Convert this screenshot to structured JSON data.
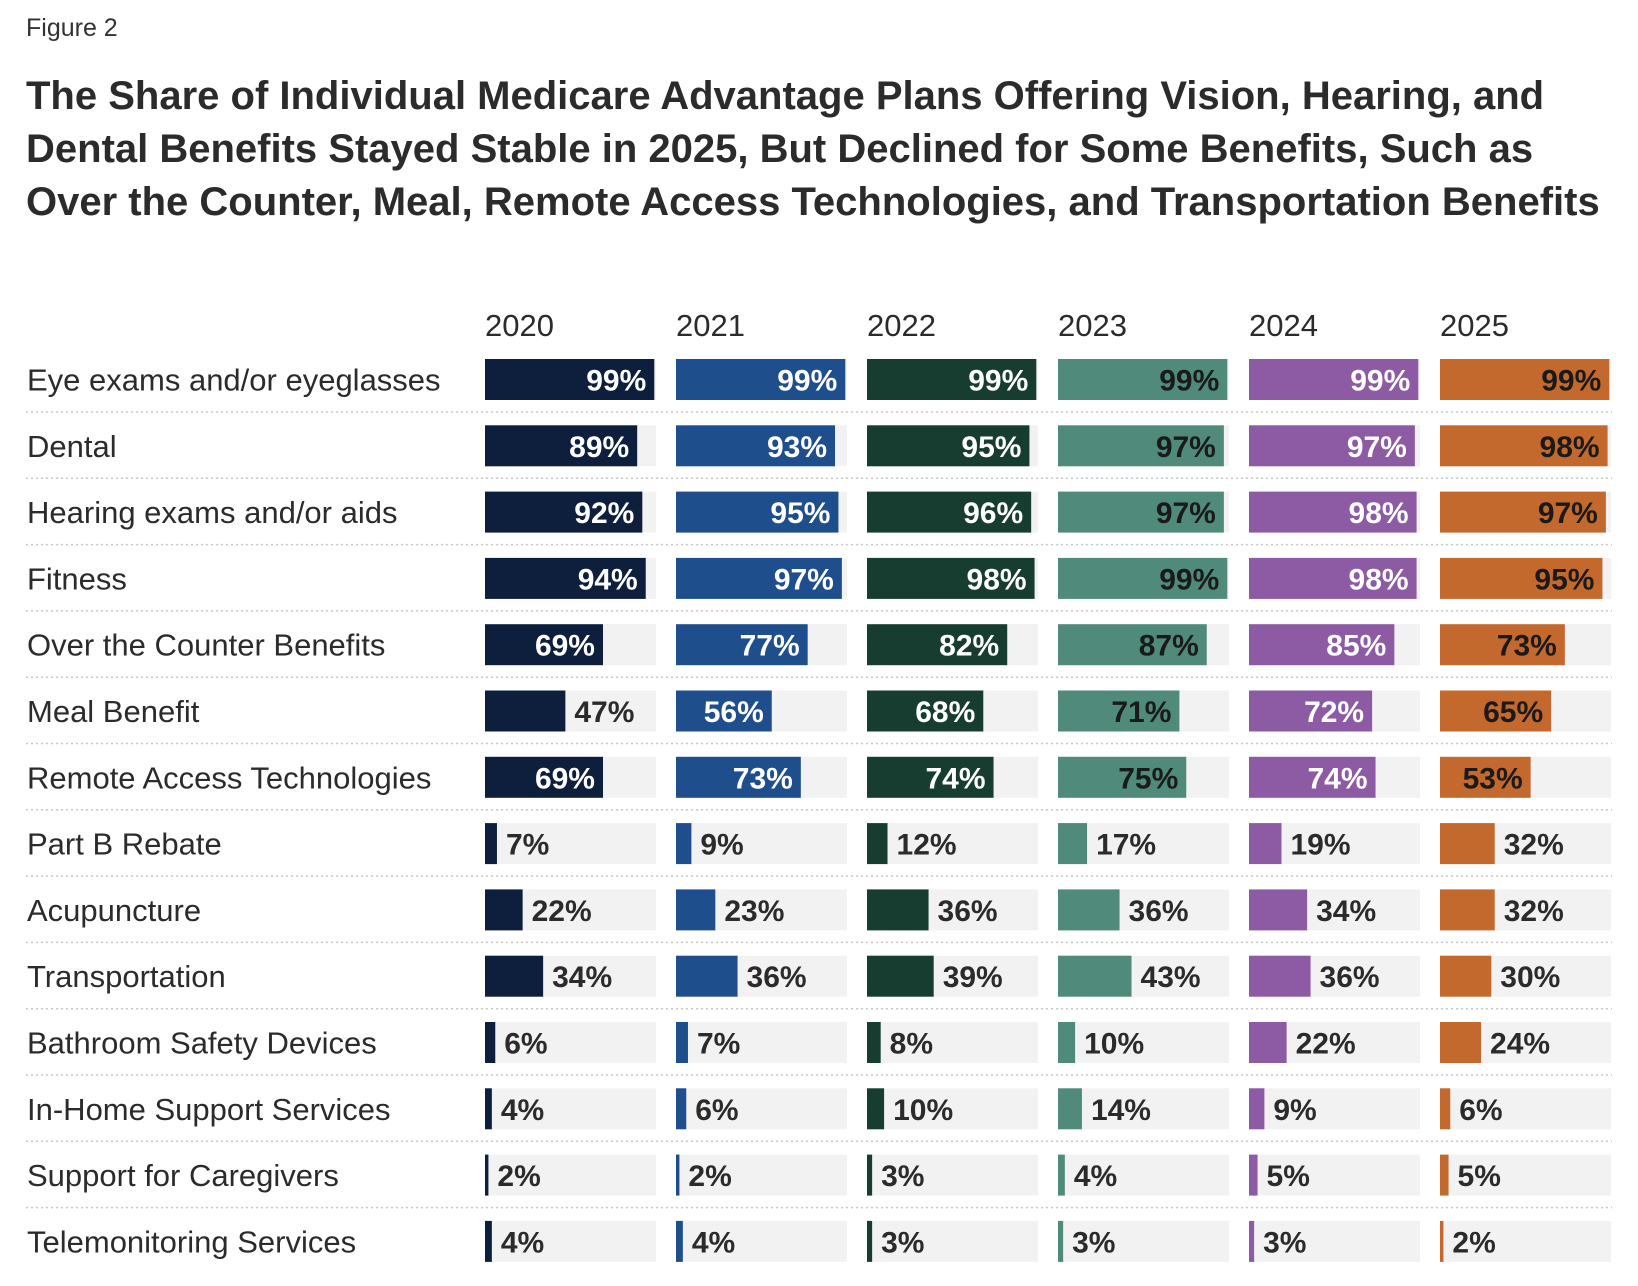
{
  "figure_label": "Figure 2",
  "title": "The Share of Individual Medicare Advantage Plans Offering Vision, Hearing, and Dental Benefits Stayed Stable in 2025, But Declined for Some Benefits, Such as Over the Counter, Meal, Remote Access Technologies, and Transportation Benefits",
  "colors": {
    "track": "#f2f2f2",
    "separator": "#c8c8c8",
    "series": [
      "#0d1f3c",
      "#1f4e8c",
      "#173d30",
      "#4f8a7a",
      "#8c5ba4",
      "#c4692e"
    ],
    "label_inside": [
      "#ffffff",
      "#ffffff",
      "#ffffff",
      "#1a1a1a",
      "#ffffff",
      "#1a1a1a"
    ]
  },
  "chart_data": {
    "type": "bar",
    "layout": "small-multiples-horizontal",
    "xlim": [
      0,
      100
    ],
    "unit": "%",
    "grid": false,
    "categories": [
      "Eye exams and/or eyeglasses",
      "Dental",
      "Hearing exams and/or aids",
      "Fitness",
      "Over the Counter Benefits",
      "Meal Benefit",
      "Remote Access Technologies",
      "Part B Rebate",
      "Acupuncture",
      "Transportation",
      "Bathroom Safety Devices",
      "In-Home Support Services",
      "Support for Caregivers",
      "Telemonitoring Services"
    ],
    "series": [
      {
        "name": "2020",
        "values": [
          99,
          89,
          92,
          94,
          69,
          47,
          69,
          7,
          22,
          34,
          6,
          4,
          2,
          4
        ]
      },
      {
        "name": "2021",
        "values": [
          99,
          93,
          95,
          97,
          77,
          56,
          73,
          9,
          23,
          36,
          7,
          6,
          2,
          4
        ]
      },
      {
        "name": "2022",
        "values": [
          99,
          95,
          96,
          98,
          82,
          68,
          74,
          12,
          36,
          39,
          8,
          10,
          3,
          3
        ]
      },
      {
        "name": "2023",
        "values": [
          99,
          97,
          97,
          99,
          87,
          71,
          75,
          17,
          36,
          43,
          10,
          14,
          4,
          3
        ]
      },
      {
        "name": "2024",
        "values": [
          99,
          97,
          98,
          98,
          85,
          72,
          74,
          19,
          34,
          36,
          22,
          9,
          5,
          3
        ]
      },
      {
        "name": "2025",
        "values": [
          99,
          98,
          97,
          95,
          73,
          65,
          53,
          32,
          32,
          30,
          24,
          6,
          5,
          2
        ]
      }
    ]
  }
}
